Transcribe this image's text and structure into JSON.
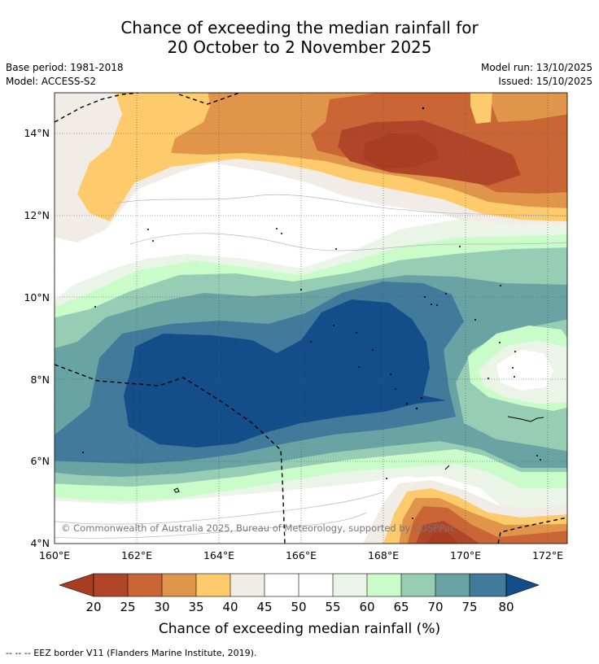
{
  "title": {
    "line1": "Chance of exceeding the median rainfall for",
    "line2": "20 October to 2 November 2025"
  },
  "meta": {
    "base_period": "Base period: 1981-2018",
    "model": "Model: ACCESS-S2",
    "model_run": "Model run: 13/10/2025",
    "issued": "Issued: 15/10/2025"
  },
  "map": {
    "lat_labels": [
      "14°N",
      "12°N",
      "10°N",
      "8°N",
      "6°N",
      "4°N"
    ],
    "lon_labels": [
      "160°E",
      "162°E",
      "164°E",
      "166°E",
      "168°E",
      "170°E",
      "172°E"
    ],
    "copyright": "© Commonwealth of Australia 2025, Bureau of Meteorology, supported by COSPPac"
  },
  "colorbar": {
    "ticks": [
      "20",
      "25",
      "30",
      "35",
      "40",
      "45",
      "50",
      "55",
      "60",
      "65",
      "70",
      "75",
      "80"
    ],
    "label": "Chance of exceeding median rainfall (%)",
    "colors": {
      "below_20": "#a83d22",
      "c20_25": "#b1452a",
      "c25_30": "#ca6636",
      "c30_35": "#e0954a",
      "c35_40": "#fdca6c",
      "c40_45": "#f1ece6",
      "c45_50": "#ffffff",
      "c50_55": "#ffffff",
      "c55_60": "#eaf5e8",
      "c60_65": "#c9fcc9",
      "c65_70": "#97cdb4",
      "c70_75": "#6aa3a3",
      "c75_80": "#417a9a",
      "above_80": "#134e8a"
    }
  },
  "footer": {
    "legend": "-- -- -- EEZ border V11 (Flanders Marine Institute, 2019)."
  }
}
